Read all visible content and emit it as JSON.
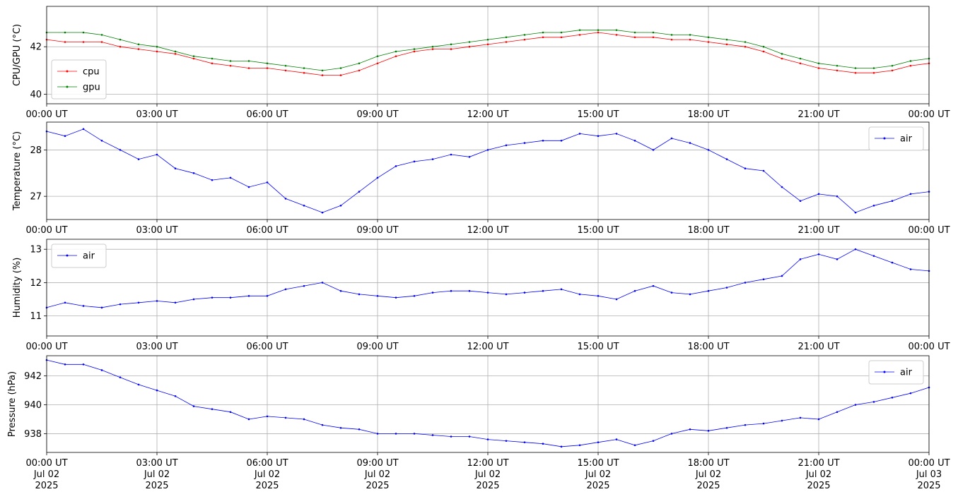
{
  "chart_data": [
    {
      "type": "line",
      "ylabel": "CPU/GPU (°C)",
      "ylim": [
        39.6,
        43.7
      ],
      "yticks": [
        "40",
        "42"
      ],
      "ytick_values": [
        40,
        42
      ],
      "xticks": [
        "00:00 UT",
        "03:00 UT",
        "06:00 UT",
        "09:00 UT",
        "12:00 UT",
        "15:00 UT",
        "18:00 UT",
        "21:00 UT",
        "00:00 UT"
      ],
      "xlim_hours": [
        0,
        24
      ],
      "grid": true,
      "legend_position": "lower-left",
      "series": [
        {
          "name": "cpu",
          "color": "#ff0000",
          "x": [
            0,
            0.5,
            1,
            1.5,
            2,
            2.5,
            3,
            3.5,
            4,
            4.5,
            5,
            5.5,
            6,
            6.5,
            7,
            7.5,
            8,
            8.5,
            9,
            9.5,
            10,
            10.5,
            11,
            11.5,
            12,
            12.5,
            13,
            13.5,
            14,
            14.5,
            15,
            15.5,
            16,
            16.5,
            17,
            17.5,
            18,
            18.5,
            19,
            19.5,
            20,
            20.5,
            21,
            21.5,
            22,
            22.5,
            23,
            23.5,
            24
          ],
          "y": [
            42.3,
            42.2,
            42.2,
            42.2,
            42.0,
            41.9,
            41.8,
            41.7,
            41.5,
            41.3,
            41.2,
            41.1,
            41.1,
            41.0,
            40.9,
            40.8,
            40.8,
            41.0,
            41.3,
            41.6,
            41.8,
            41.9,
            41.9,
            42.0,
            42.1,
            42.2,
            42.3,
            42.4,
            42.4,
            42.5,
            42.6,
            42.5,
            42.4,
            42.4,
            42.3,
            42.3,
            42.2,
            42.1,
            42.0,
            41.8,
            41.5,
            41.3,
            41.1,
            41.0,
            40.9,
            40.9,
            41.0,
            41.2,
            41.3
          ]
        },
        {
          "name": "gpu",
          "color": "#008000",
          "x": [
            0,
            0.5,
            1,
            1.5,
            2,
            2.5,
            3,
            3.5,
            4,
            4.5,
            5,
            5.5,
            6,
            6.5,
            7,
            7.5,
            8,
            8.5,
            9,
            9.5,
            10,
            10.5,
            11,
            11.5,
            12,
            12.5,
            13,
            13.5,
            14,
            14.5,
            15,
            15.5,
            16,
            16.5,
            17,
            17.5,
            18,
            18.5,
            19,
            19.5,
            20,
            20.5,
            21,
            21.5,
            22,
            22.5,
            23,
            23.5,
            24
          ],
          "y": [
            42.6,
            42.6,
            42.6,
            42.5,
            42.3,
            42.1,
            42.0,
            41.8,
            41.6,
            41.5,
            41.4,
            41.4,
            41.3,
            41.2,
            41.1,
            41.0,
            41.1,
            41.3,
            41.6,
            41.8,
            41.9,
            42.0,
            42.1,
            42.2,
            42.3,
            42.4,
            42.5,
            42.6,
            42.6,
            42.7,
            42.7,
            42.7,
            42.6,
            42.6,
            42.5,
            42.5,
            42.4,
            42.3,
            42.2,
            42.0,
            41.7,
            41.5,
            41.3,
            41.2,
            41.1,
            41.1,
            41.2,
            41.4,
            41.5
          ]
        }
      ]
    },
    {
      "type": "line",
      "ylabel": "Temperature (°C)",
      "ylim": [
        26.5,
        28.6
      ],
      "yticks": [
        "27",
        "28"
      ],
      "ytick_values": [
        27,
        28
      ],
      "xticks": [
        "00:00 UT",
        "03:00 UT",
        "06:00 UT",
        "09:00 UT",
        "12:00 UT",
        "15:00 UT",
        "18:00 UT",
        "21:00 UT",
        "00:00 UT"
      ],
      "xlim_hours": [
        0,
        24
      ],
      "grid": true,
      "legend_position": "upper-right",
      "series": [
        {
          "name": "air",
          "color": "#0000ff",
          "x": [
            0,
            0.5,
            1,
            1.5,
            2,
            2.5,
            3,
            3.5,
            4,
            4.5,
            5,
            5.5,
            6,
            6.5,
            7,
            7.5,
            8,
            8.5,
            9,
            9.5,
            10,
            10.5,
            11,
            11.5,
            12,
            12.5,
            13,
            13.5,
            14,
            14.5,
            15,
            15.5,
            16,
            16.5,
            17,
            17.5,
            18,
            18.5,
            19,
            19.5,
            20,
            20.5,
            21,
            21.5,
            22,
            22.5,
            23,
            23.5,
            24
          ],
          "y": [
            28.4,
            28.3,
            28.45,
            28.2,
            28.0,
            27.8,
            27.9,
            27.6,
            27.5,
            27.35,
            27.4,
            27.2,
            27.3,
            26.95,
            26.8,
            26.65,
            26.8,
            27.1,
            27.4,
            27.65,
            27.75,
            27.8,
            27.9,
            27.85,
            28.0,
            28.1,
            28.15,
            28.2,
            28.2,
            28.35,
            28.3,
            28.35,
            28.2,
            28.0,
            28.25,
            28.15,
            28.0,
            27.8,
            27.6,
            27.55,
            27.2,
            26.9,
            27.05,
            27.0,
            26.65,
            26.8,
            26.9,
            27.05,
            27.1
          ]
        }
      ]
    },
    {
      "type": "line",
      "ylabel": "Humidity (%)",
      "ylim": [
        10.4,
        13.3
      ],
      "yticks": [
        "11",
        "12",
        "13"
      ],
      "ytick_values": [
        11,
        12,
        13
      ],
      "xticks": [
        "00:00 UT",
        "03:00 UT",
        "06:00 UT",
        "09:00 UT",
        "12:00 UT",
        "15:00 UT",
        "18:00 UT",
        "21:00 UT",
        "00:00 UT"
      ],
      "xlim_hours": [
        0,
        24
      ],
      "grid": true,
      "legend_position": "upper-left",
      "series": [
        {
          "name": "air",
          "color": "#0000ff",
          "x": [
            0,
            0.5,
            1,
            1.5,
            2,
            2.5,
            3,
            3.5,
            4,
            4.5,
            5,
            5.5,
            6,
            6.5,
            7,
            7.5,
            8,
            8.5,
            9,
            9.5,
            10,
            10.5,
            11,
            11.5,
            12,
            12.5,
            13,
            13.5,
            14,
            14.5,
            15,
            15.5,
            16,
            16.5,
            17,
            17.5,
            18,
            18.5,
            19,
            19.5,
            20,
            20.5,
            21,
            21.5,
            22,
            22.5,
            23,
            23.5,
            24
          ],
          "y": [
            11.25,
            11.4,
            11.3,
            11.25,
            11.35,
            11.4,
            11.45,
            11.4,
            11.5,
            11.55,
            11.55,
            11.6,
            11.6,
            11.8,
            11.9,
            12.0,
            11.75,
            11.65,
            11.6,
            11.55,
            11.6,
            11.7,
            11.75,
            11.75,
            11.7,
            11.65,
            11.7,
            11.75,
            11.8,
            11.65,
            11.6,
            11.5,
            11.75,
            11.9,
            11.7,
            11.65,
            11.75,
            11.85,
            12.0,
            12.1,
            12.2,
            12.7,
            12.85,
            12.7,
            13.0,
            12.8,
            12.6,
            12.4,
            12.35
          ]
        }
      ]
    },
    {
      "type": "line",
      "ylabel": "Pressure (hPa)",
      "ylim": [
        936.7,
        943.4
      ],
      "yticks": [
        "938",
        "940",
        "942"
      ],
      "ytick_values": [
        938,
        940,
        942
      ],
      "xticks": [
        "00:00 UT\nJul 02\n2025",
        "03:00 UT\nJul 02\n2025",
        "06:00 UT\nJul 02\n2025",
        "09:00 UT\nJul 02\n2025",
        "12:00 UT\nJul 02\n2025",
        "15:00 UT\nJul 02\n2025",
        "18:00 UT\nJul 02\n2025",
        "21:00 UT\nJul 02\n2025",
        "00:00 UT\nJul 03\n2025"
      ],
      "xlim_hours": [
        0,
        24
      ],
      "grid": true,
      "legend_position": "upper-right",
      "series": [
        {
          "name": "air",
          "color": "#0000ff",
          "x": [
            0,
            0.5,
            1,
            1.5,
            2,
            2.5,
            3,
            3.5,
            4,
            4.5,
            5,
            5.5,
            6,
            6.5,
            7,
            7.5,
            8,
            8.5,
            9,
            9.5,
            10,
            10.5,
            11,
            11.5,
            12,
            12.5,
            13,
            13.5,
            14,
            14.5,
            15,
            15.5,
            16,
            16.5,
            17,
            17.5,
            18,
            18.5,
            19,
            19.5,
            20,
            20.5,
            21,
            21.5,
            22,
            22.5,
            23,
            23.5,
            24
          ],
          "y": [
            943.1,
            942.8,
            942.8,
            942.4,
            941.9,
            941.4,
            941.0,
            940.6,
            939.9,
            939.7,
            939.5,
            939.0,
            939.2,
            939.1,
            939.0,
            938.6,
            938.4,
            938.3,
            938.0,
            938.0,
            938.0,
            937.9,
            937.8,
            937.8,
            937.6,
            937.5,
            937.4,
            937.3,
            937.1,
            937.2,
            937.4,
            937.6,
            937.2,
            937.5,
            938.0,
            938.3,
            938.2,
            938.4,
            938.6,
            938.7,
            938.9,
            939.1,
            939.0,
            939.5,
            940.0,
            940.2,
            940.5,
            940.8,
            941.2
          ]
        }
      ]
    }
  ]
}
